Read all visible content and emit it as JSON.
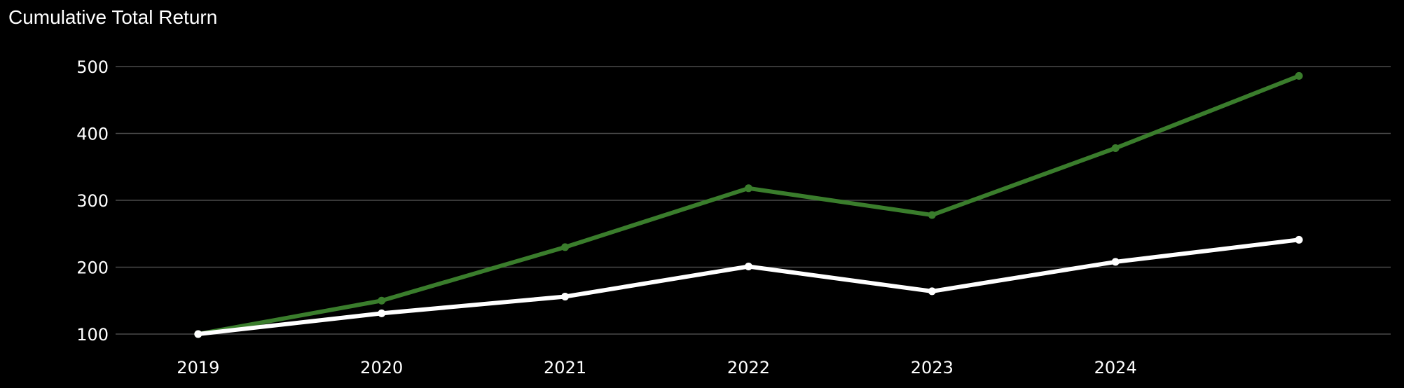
{
  "chart_data": {
    "type": "line",
    "title": "Cumulative Total Return",
    "xlabel": "",
    "ylabel": "",
    "x_ticks": [
      "2019",
      "2020",
      "2021",
      "2022",
      "2023",
      "2024"
    ],
    "x": [
      2019,
      2020,
      2021,
      2022,
      2023,
      2024,
      2025
    ],
    "y_ticks": [
      100,
      200,
      300,
      400,
      500
    ],
    "xlim": [
      2018.55,
      2025.5
    ],
    "ylim": [
      100,
      500
    ],
    "grid": true,
    "legend": "none",
    "series": [
      {
        "color": "#3a7d2c",
        "values": [
          100,
          150,
          230,
          318,
          278,
          378,
          486
        ]
      },
      {
        "color": "#ffffff",
        "values": [
          100,
          131,
          156,
          201,
          164,
          208,
          241
        ]
      }
    ]
  }
}
